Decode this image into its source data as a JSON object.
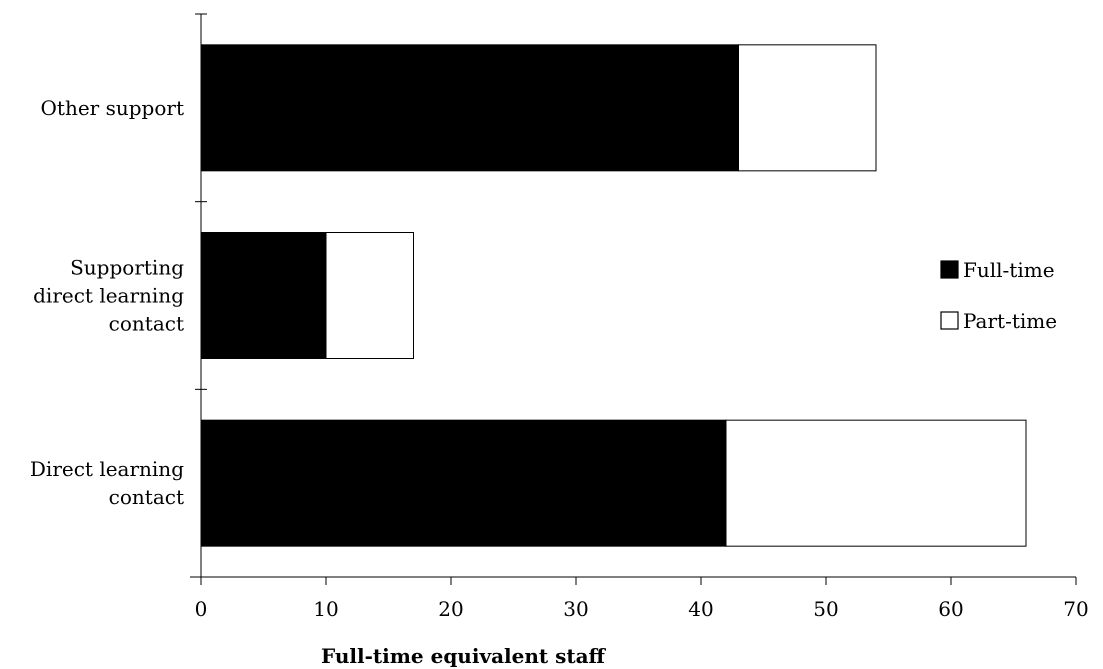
{
  "chart_data": {
    "type": "bar",
    "orientation": "horizontal",
    "stacked": true,
    "categories": [
      [
        "Other support"
      ],
      [
        "Supporting",
        "direct learning",
        "contact"
      ],
      [
        "Direct learning",
        "contact"
      ]
    ],
    "series": [
      {
        "name": "Full-time",
        "color": "#000000",
        "values": [
          43,
          10,
          42
        ]
      },
      {
        "name": "Part-time",
        "color": "#ffffff",
        "values": [
          11,
          7,
          24
        ]
      }
    ],
    "xlabel": "Full-time equivalent staff",
    "xlim": [
      0,
      70
    ],
    "xticks": [
      0,
      10,
      20,
      30,
      40,
      50,
      60,
      70
    ],
    "grid": false,
    "legend_position": "right"
  }
}
